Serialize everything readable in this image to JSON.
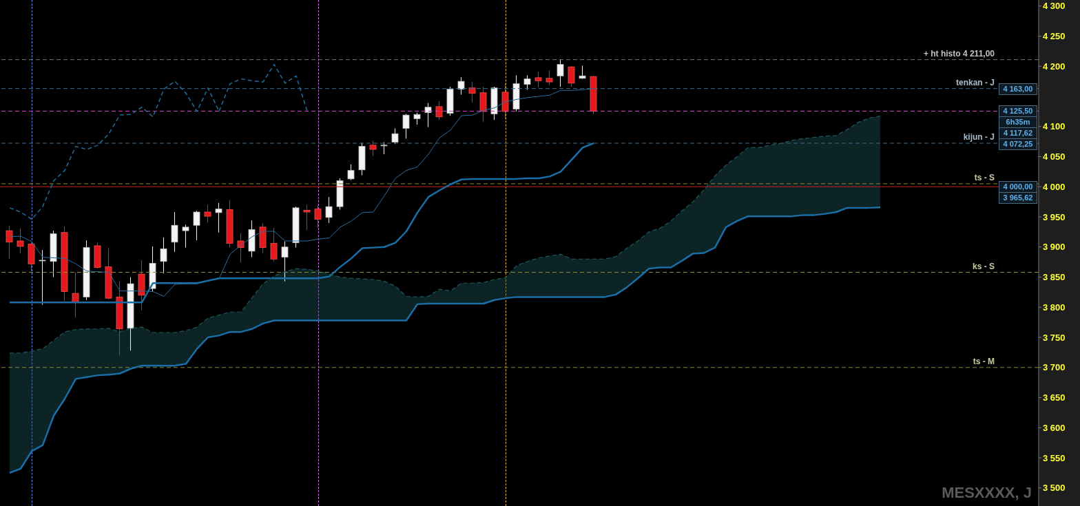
{
  "chart_data": {
    "type": "candlestick",
    "categories": [
      null,
      null,
      null,
      null,
      null,
      null,
      null,
      null,
      null,
      null,
      null,
      null,
      null,
      null,
      null,
      null,
      null,
      null,
      null,
      null,
      null,
      null,
      null,
      null,
      null,
      null,
      null,
      null,
      null,
      null,
      null,
      null,
      null,
      null,
      null,
      null,
      null,
      null,
      null,
      null,
      null,
      null,
      null,
      null,
      null,
      null,
      null,
      null,
      null,
      null,
      null,
      null,
      null,
      null,
      null,
      null,
      null,
      null,
      null,
      null,
      null,
      null,
      null,
      null,
      null,
      null,
      null,
      null,
      null,
      null,
      null,
      null,
      null,
      null,
      null,
      null,
      null,
      null,
      null,
      null
    ],
    "ohlc": [
      [
        3927,
        3935,
        3880,
        3908
      ],
      [
        3910,
        3931,
        3889,
        3901
      ],
      [
        3905,
        3907,
        3860,
        3872
      ],
      [
        3877,
        3895,
        3804,
        3878
      ],
      [
        3876,
        3927,
        3850,
        3922
      ],
      [
        3924,
        3934,
        3810,
        3826
      ],
      [
        3823,
        3858,
        3783,
        3809
      ],
      [
        3817,
        3911,
        3812,
        3899
      ],
      [
        3902,
        3907,
        3864,
        3866
      ],
      [
        3867,
        3898,
        3813,
        3815
      ],
      [
        3817,
        3843,
        3720,
        3764
      ],
      [
        3765,
        3850,
        3728,
        3839
      ],
      [
        3855,
        3878,
        3795,
        3820
      ],
      [
        3831,
        3901,
        3826,
        3873
      ],
      [
        3876,
        3916,
        3856,
        3897
      ],
      [
        3908,
        3958,
        3892,
        3936
      ],
      [
        3927,
        3937,
        3899,
        3933
      ],
      [
        3936,
        3960,
        3911,
        3958
      ],
      [
        3958,
        3970,
        3941,
        3951
      ],
      [
        3957,
        3973,
        3924,
        3963
      ],
      [
        3962,
        3978,
        3899,
        3906
      ],
      [
        3910,
        3923,
        3874,
        3899
      ],
      [
        3893,
        3944,
        3883,
        3929
      ],
      [
        3933,
        3939,
        3890,
        3899
      ],
      [
        3906,
        3932,
        3876,
        3880
      ],
      [
        3883,
        3909,
        3843,
        3900
      ],
      [
        3907,
        3967,
        3899,
        3965
      ],
      [
        3961,
        3970,
        3928,
        3958
      ],
      [
        3963,
        3969,
        3932,
        3946
      ],
      [
        3949,
        3983,
        3940,
        3967
      ],
      [
        3967,
        4014,
        3962,
        4010
      ],
      [
        4013,
        4037,
        4011,
        4027
      ],
      [
        4028,
        4073,
        4019,
        4067
      ],
      [
        4069,
        4076,
        4051,
        4062
      ],
      [
        4068,
        4074,
        4054,
        4069
      ],
      [
        4074,
        4097,
        4071,
        4088
      ],
      [
        4097,
        4121,
        4080,
        4119
      ],
      [
        4113,
        4123,
        4103,
        4120
      ],
      [
        4123,
        4139,
        4099,
        4132
      ],
      [
        4133,
        4142,
        4111,
        4116
      ],
      [
        4122,
        4166,
        4118,
        4162
      ],
      [
        4162,
        4182,
        4153,
        4175
      ],
      [
        4164,
        4174,
        4140,
        4155
      ],
      [
        4156,
        4166,
        4108,
        4125
      ],
      [
        4121,
        4166,
        4111,
        4164
      ],
      [
        4157,
        4171,
        4113,
        4125
      ],
      [
        4129,
        4185,
        4125,
        4171
      ],
      [
        4170,
        4185,
        4161,
        4179
      ],
      [
        4181,
        4191,
        4165,
        4176
      ],
      [
        4180,
        4193,
        4169,
        4174
      ],
      [
        4184,
        4211,
        4166,
        4203
      ],
      [
        4199,
        4200,
        4166,
        4172
      ],
      [
        4180,
        4201,
        4179,
        4184
      ],
      [
        4183,
        4184,
        4121,
        4125.5
      ],
      null,
      null,
      null,
      null,
      null,
      null,
      null,
      null,
      null,
      null,
      null,
      null,
      null,
      null,
      null,
      null,
      null,
      null,
      null,
      null,
      null,
      null,
      null,
      null,
      null,
      null
    ],
    "series": [
      {
        "type": "line",
        "color": "#2b6c9c",
        "values": [
          3917,
          3918,
          3909,
          3883,
          3882,
          3881,
          3872,
          3860,
          3859,
          3858,
          3827,
          3827,
          3827,
          3826,
          3818,
          3838,
          3839,
          3839,
          3844,
          3847,
          3888,
          3903,
          3917,
          3926,
          3926,
          3910,
          3910,
          3910,
          3913,
          3915,
          3933,
          3943,
          3957,
          3958,
          3985,
          4014,
          4027,
          4033,
          4054,
          4081,
          4094,
          4118,
          4119,
          4127,
          4131,
          4141,
          4145,
          4148,
          4150,
          4152,
          4160,
          4160,
          4161,
          4163,
          null,
          null,
          null,
          null,
          null,
          null,
          null,
          null,
          null,
          null,
          null,
          null,
          null,
          null,
          null,
          null,
          null,
          null,
          null,
          null,
          null,
          null,
          null,
          null,
          null,
          null
        ]
      },
      {
        "type": "line",
        "color": "#1b6fa8",
        "values": [
          3808,
          3808,
          3808,
          3808,
          3808,
          3808,
          3808,
          3808,
          3808,
          3808,
          3808,
          3808,
          3808,
          3840,
          3840,
          3840,
          3840,
          3840,
          3844,
          3848,
          3848,
          3848,
          3848,
          3848,
          3848,
          3848,
          3848,
          3848,
          3848,
          3851,
          3867,
          3881,
          3898,
          3899,
          3900,
          3907,
          3926,
          3957,
          3983,
          3994,
          4004,
          4012,
          4013,
          4013,
          4013,
          4013,
          4013,
          4014,
          4014,
          4017,
          4025,
          4045,
          4065,
          4072.25,
          null,
          null,
          null,
          null,
          null,
          null,
          null,
          null,
          null,
          null,
          null,
          null,
          null,
          null,
          null,
          null,
          null,
          null,
          null,
          null,
          null,
          null,
          null,
          null,
          null,
          null
        ]
      },
      {
        "type": "line",
        "color": "#1f6e99",
        "line_style": "dashed",
        "values": [
          3965,
          3958,
          3946,
          3967,
          4010,
          4027,
          4067,
          4062,
          4069,
          4088,
          4119,
          4120,
          4132,
          4116,
          4162,
          4175,
          4155,
          4125,
          4164,
          4125,
          4171,
          4179,
          4176,
          4174,
          4203,
          4172,
          4184,
          4125.5,
          null,
          null,
          null,
          null,
          null,
          null,
          null,
          null,
          null,
          null,
          null,
          null,
          null,
          null,
          null,
          null,
          null,
          null,
          null,
          null,
          null,
          null,
          null,
          null,
          null,
          null,
          null,
          null,
          null,
          null,
          null,
          null,
          null,
          null,
          null,
          null,
          null,
          null,
          null,
          null,
          null,
          null,
          null,
          null,
          null,
          null,
          null,
          null,
          null,
          null,
          null,
          null
        ]
      },
      {
        "type": "line",
        "color": "#1e5a5e",
        "line_style": "dashed",
        "values": [
          3724,
          3724,
          3727,
          3731,
          3745,
          3759,
          3763,
          3764,
          3764,
          3765,
          3759,
          3765,
          3767,
          3758,
          3758,
          3758,
          3761,
          3767,
          3782,
          3787,
          3792,
          3792,
          3816,
          3839,
          3852,
          3859,
          3864,
          3863,
          3860,
          3855,
          3850,
          3848,
          3847,
          3846,
          3843,
          3835,
          3818,
          3817,
          3818,
          3830,
          3827,
          3840,
          3840,
          3841,
          3846,
          3849,
          3869,
          3876,
          3882,
          3885,
          3888,
          3880,
          3880,
          3880,
          3880,
          3884,
          3898,
          3910,
          3925,
          3931,
          3943,
          3960,
          3975,
          3995,
          4018,
          4036,
          4050,
          4065,
          4065,
          4069,
          4072,
          4077,
          4080,
          4082,
          4084,
          4085,
          4095,
          4107,
          4114,
          4117.62
        ],
        "lower": [
          3525,
          3532,
          3561,
          3571,
          3620,
          3648,
          3681,
          3684,
          3687,
          3688,
          3690,
          3698,
          3703,
          3703,
          3703,
          3703,
          3706,
          3731,
          3750,
          3753,
          3759,
          3759,
          3764,
          3773,
          3778,
          3778,
          3778,
          3778,
          3778,
          3778,
          3778,
          3778,
          3778,
          3778,
          3778,
          3778,
          3778,
          3805,
          3806,
          3806,
          3806,
          3806,
          3806,
          3806,
          3812,
          3815,
          3817,
          3817,
          3817,
          3817,
          3817,
          3817,
          3817,
          3817,
          3817,
          3821,
          3833,
          3848,
          3864,
          3866,
          3866,
          3877,
          3889,
          3890,
          3899,
          3933,
          3943,
          3951,
          3951,
          3951,
          3951,
          3951,
          3953,
          3953,
          3955,
          3958,
          3965,
          3965,
          3965,
          3965.62
        ],
        "upper": [
          3724,
          3724,
          3727,
          3731,
          3745,
          3759,
          3763,
          3764,
          3764,
          3765,
          3759,
          3765,
          3767,
          3758,
          3758,
          3758,
          3761,
          3767,
          3782,
          3787,
          3792,
          3792,
          3816,
          3839,
          3852,
          3859,
          3864,
          3863,
          3860,
          3855,
          3850,
          3848,
          3847,
          3846,
          3843,
          3835,
          3818,
          3817,
          3818,
          3830,
          3827,
          3840,
          3840,
          3841,
          3846,
          3849,
          3869,
          3876,
          3882,
          3885,
          3888,
          3880,
          3880,
          3880,
          3880,
          3884,
          3898,
          3910,
          3925,
          3931,
          3943,
          3960,
          3975,
          3995,
          4018,
          4036,
          4050,
          4065,
          4065,
          4069,
          4072,
          4077,
          4080,
          4082,
          4084,
          4085,
          4095,
          4107,
          4114,
          4117.62
        ]
      },
      {
        "type": "line",
        "color": "#1b6fa8",
        "values": [
          3525,
          3532,
          3561,
          3571,
          3620,
          3648,
          3681,
          3684,
          3687,
          3688,
          3690,
          3698,
          3703,
          3703,
          3703,
          3703,
          3706,
          3731,
          3750,
          3753,
          3759,
          3759,
          3764,
          3773,
          3778,
          3778,
          3778,
          3778,
          3778,
          3778,
          3778,
          3778,
          3778,
          3778,
          3778,
          3778,
          3778,
          3805,
          3806,
          3806,
          3806,
          3806,
          3806,
          3806,
          3812,
          3815,
          3817,
          3817,
          3817,
          3817,
          3817,
          3817,
          3817,
          3817,
          3817,
          3821,
          3833,
          3848,
          3864,
          3866,
          3866,
          3877,
          3889,
          3890,
          3899,
          3933,
          3943,
          3951,
          3951,
          3951,
          3951,
          3951,
          3953,
          3953,
          3955,
          3958,
          3965,
          3965,
          3965,
          3965.62
        ]
      }
    ],
    "ylim": [
      3470,
      4310
    ],
    "yticks": [
      {
        "value": 3500,
        "label": "3 500"
      },
      {
        "value": 3550,
        "label": "3 550"
      },
      {
        "value": 3600,
        "label": "3 600"
      },
      {
        "value": 3650,
        "label": "3 650"
      },
      {
        "value": 3700,
        "label": "3 700"
      },
      {
        "value": 3750,
        "label": "3 750"
      },
      {
        "value": 3800,
        "label": "3 800"
      },
      {
        "value": 3850,
        "label": "3 850"
      },
      {
        "value": 3900,
        "label": "3 900"
      },
      {
        "value": 3950,
        "label": "3 950"
      },
      {
        "value": 4000,
        "label": "4 000"
      },
      {
        "value": 4050,
        "label": "4 050"
      },
      {
        "value": 4100,
        "label": "4 100"
      },
      {
        "value": 4200,
        "label": "4 200"
      },
      {
        "value": 4250,
        "label": "4 250"
      },
      {
        "value": 4300,
        "label": "4 300"
      }
    ],
    "ref_lines": [
      {
        "axis": "y",
        "value": 4211,
        "label": "+ ht histo 4 211,00",
        "color": "#777777",
        "line_style": "dashed"
      },
      {
        "axis": "y",
        "value": 4163,
        "label": "tenkan - J",
        "color": "#3a6a8c",
        "line_style": "dashed"
      },
      {
        "axis": "y",
        "value": 4125.5,
        "color": "#d23cd2",
        "line_style": "dashed"
      },
      {
        "axis": "y",
        "value": 4072.25,
        "label": "kijun - J",
        "color": "#3a6a8c",
        "line_style": "dashed"
      },
      {
        "axis": "y",
        "value": 4005,
        "label": "ts - S",
        "color": "#8a8a30",
        "line_style": "dashed"
      },
      {
        "axis": "y",
        "value": 4000,
        "color": "#cc1f1f",
        "line_style": "solid"
      },
      {
        "axis": "y",
        "value": 3858,
        "label": "ks - S",
        "color": "#8a8a30",
        "line_style": "dashed"
      },
      {
        "axis": "y",
        "value": 3700,
        "label": "ts - M",
        "color": "#8a8a30",
        "line_style": "dashed"
      }
    ],
    "annotations": [
      "MESXXXX, J",
      {
        "text": "4 163,00",
        "y": 4163
      },
      {
        "text": "4 125,50",
        "y": 4125.5
      },
      {
        "text": "6h35m",
        "y": 4125.5
      },
      "4 117,62",
      {
        "text": "4 072,25",
        "y": 4072.25
      },
      {
        "text": "4 000,00",
        "y": 4000
      },
      "3 965,62"
    ]
  }
}
